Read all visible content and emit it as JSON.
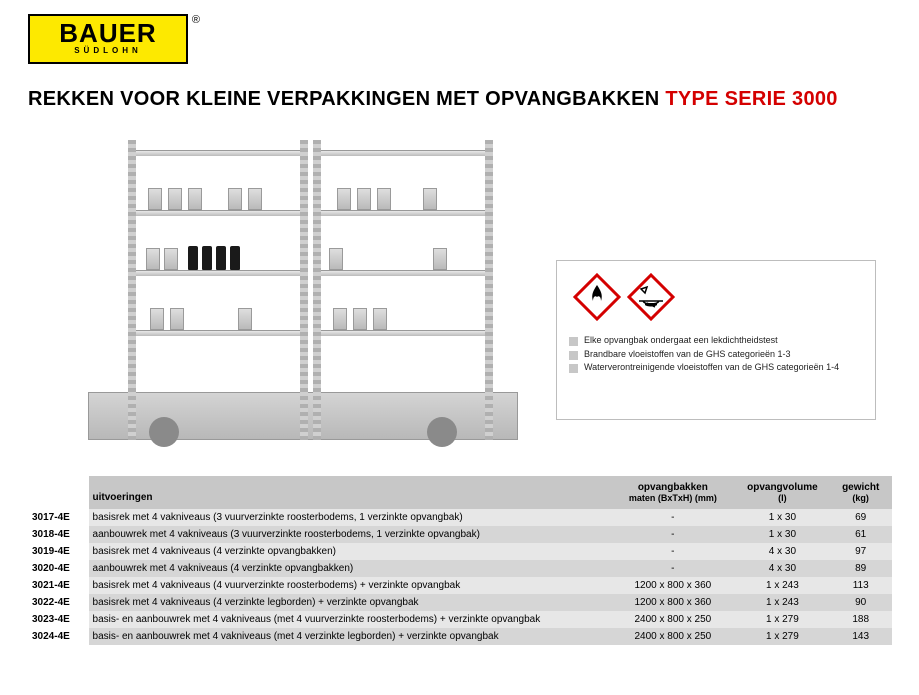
{
  "logo": {
    "main": "BAUER",
    "sub": "SÜDLOHN",
    "reg": "®"
  },
  "title": {
    "part1": "REKKEN VOOR KLEINE VERPAKKINGEN MET OPVANGBAKKEN ",
    "part2": "TYPE SERIE 3000"
  },
  "info_bullets": [
    "Elke opvangbak ondergaat een lekdichtheidstest",
    "Brandbare vloeistoffen van de GHS categorieën 1-3",
    "Waterverontreinigende vloeistoffen van de GHS categorieën 1-4"
  ],
  "ghs_border_color": "#d40000",
  "ghs_fill_color": "#ffffff",
  "ghs_symbol_color": "#000000",
  "table": {
    "headers": {
      "uitvoeringen": "uitvoeringen",
      "maten_line1": "opvangbakken",
      "maten_line2": "maten (BxTxH) (mm)",
      "volume_line1": "opvangvolume",
      "volume_line2": "(l)",
      "gewicht_line1": "gewicht",
      "gewicht_line2": "(kg)"
    },
    "rows": [
      {
        "code": "3017-4E",
        "desc": "basisrek met 4 vakniveaus (3 vuurverzinkte roosterbodems, 1 verzinkte opvangbak)",
        "maten": "-",
        "vol": "1 x  30",
        "weight": "69"
      },
      {
        "code": "3018-4E",
        "desc": "aanbouwrek met 4 vakniveaus (3 vuurverzinkte roosterbodems, 1 verzinkte opvangbak)",
        "maten": "-",
        "vol": "1 x  30",
        "weight": "61"
      },
      {
        "code": "3019-4E",
        "desc": "basisrek met 4 vakniveaus (4 verzinkte opvangbakken)",
        "maten": "-",
        "vol": "4 x  30",
        "weight": "97"
      },
      {
        "code": "3020-4E",
        "desc": "aanbouwrek met 4 vakniveaus (4 verzinkte opvangbakken)",
        "maten": "-",
        "vol": "4 x  30",
        "weight": "89"
      },
      {
        "code": "3021-4E",
        "desc": "basisrek met 4 vakniveaus (4 vuurverzinkte roosterbodems) + verzinkte opvangbak",
        "maten": "1200 x 800 x 360",
        "vol": "1 x 243",
        "weight": "113"
      },
      {
        "code": "3022-4E",
        "desc": "basisrek met 4 vakniveaus (4 verzinkte legborden) + verzinkte opvangbak",
        "maten": "1200 x 800 x 360",
        "vol": "1 x 243",
        "weight": "90"
      },
      {
        "code": "3023-4E",
        "desc": "basis- en aanbouwrek met 4 vakniveaus (met 4 vuurverzinkte roosterbodems) + verzinkte opvangbak",
        "maten": "2400 x 800 x 250",
        "vol": "1 x 279",
        "weight": "188"
      },
      {
        "code": "3024-4E",
        "desc": "basis- en aanbouwrek met 4 vakniveaus (met 4 verzinkte legborden) + verzinkte opvangbak",
        "maten": "2400 x 800 x 250",
        "vol": "1 x 279",
        "weight": "143"
      }
    ]
  },
  "colors": {
    "brand_yellow": "#fde900",
    "title_red": "#d40000",
    "header_bg": "#c7c7c7",
    "row_even": "#e7e7e7",
    "row_odd": "#d6d6d6"
  }
}
